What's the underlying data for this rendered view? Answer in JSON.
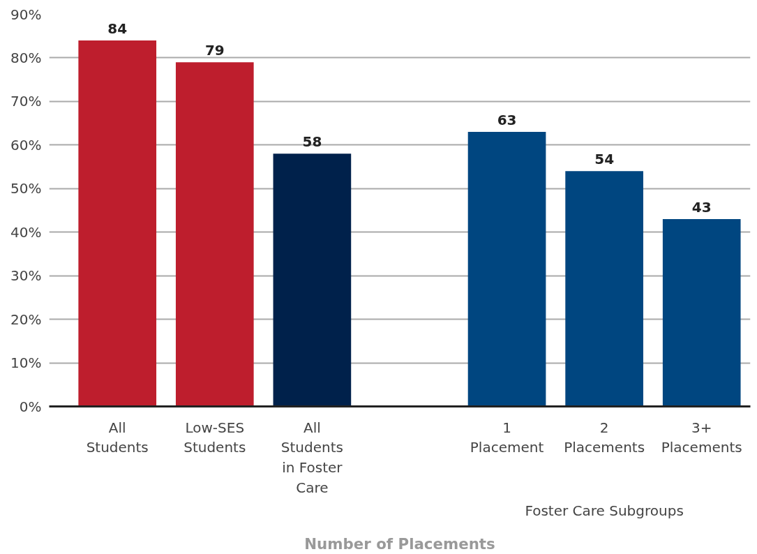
{
  "chart_data": {
    "type": "bar",
    "xlabel": "Number of Placements",
    "categories": [
      "All\nStudents",
      "Low-SES\nStudents",
      "All\nStudents\nin Foster\nCare",
      null,
      "1\nPlacement",
      "2\nPlacements",
      "3+\nPlacements"
    ],
    "values": [
      84,
      79,
      58,
      null,
      63,
      54,
      43
    ],
    "colors": [
      "#be1e2d",
      "#be1e2d",
      "#00214b",
      null,
      "#004680",
      "#004680",
      "#004680"
    ],
    "data_labels": true,
    "ylim": [
      0,
      90
    ],
    "yticks": [
      {
        "value": 0,
        "label": "0%"
      },
      {
        "value": 10,
        "label": "10%"
      },
      {
        "value": 20,
        "label": "20%"
      },
      {
        "value": 30,
        "label": "30%"
      },
      {
        "value": 40,
        "label": "40%"
      },
      {
        "value": 50,
        "label": "50%"
      },
      {
        "value": 60,
        "label": "60%"
      },
      {
        "value": 70,
        "label": "70%"
      },
      {
        "value": 80,
        "label": "80%"
      },
      {
        "value": 90,
        "label": "90%"
      }
    ],
    "grid": "y",
    "annotations": [
      "Foster Care Subgroups"
    ]
  }
}
